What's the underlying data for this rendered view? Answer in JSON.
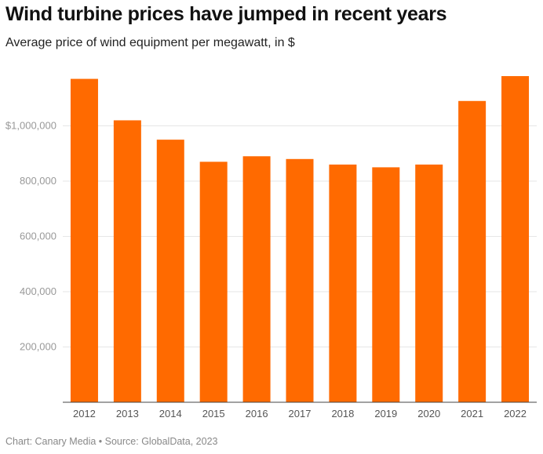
{
  "title": "Wind turbine prices have jumped in recent years",
  "subtitle": "Average price of wind equipment per megawatt, in $",
  "footer": {
    "source": "Chart: Canary Media • Source: GlobalData, 2023"
  },
  "colors": {
    "bar": "#FF6A00",
    "grid": "#e6e6e6",
    "axis": "#444444"
  },
  "chart_data": {
    "type": "bar",
    "title": "Wind turbine prices have jumped in recent years",
    "subtitle": "Average price of wind equipment per megawatt, in $",
    "categories": [
      "2012",
      "2013",
      "2014",
      "2015",
      "2016",
      "2017",
      "2018",
      "2019",
      "2020",
      "2021",
      "2022"
    ],
    "values": [
      1170000,
      1020000,
      950000,
      870000,
      890000,
      880000,
      860000,
      850000,
      860000,
      1090000,
      1180000
    ],
    "ylim": [
      0,
      1200000
    ],
    "yticks": [
      {
        "value": 200000,
        "label": "200,000"
      },
      {
        "value": 400000,
        "label": "400,000"
      },
      {
        "value": 600000,
        "label": "600,000"
      },
      {
        "value": 800000,
        "label": "800,000"
      },
      {
        "value": 1000000,
        "label": "$1,000,000"
      }
    ],
    "grid": true,
    "xlabel": "",
    "ylabel": ""
  }
}
